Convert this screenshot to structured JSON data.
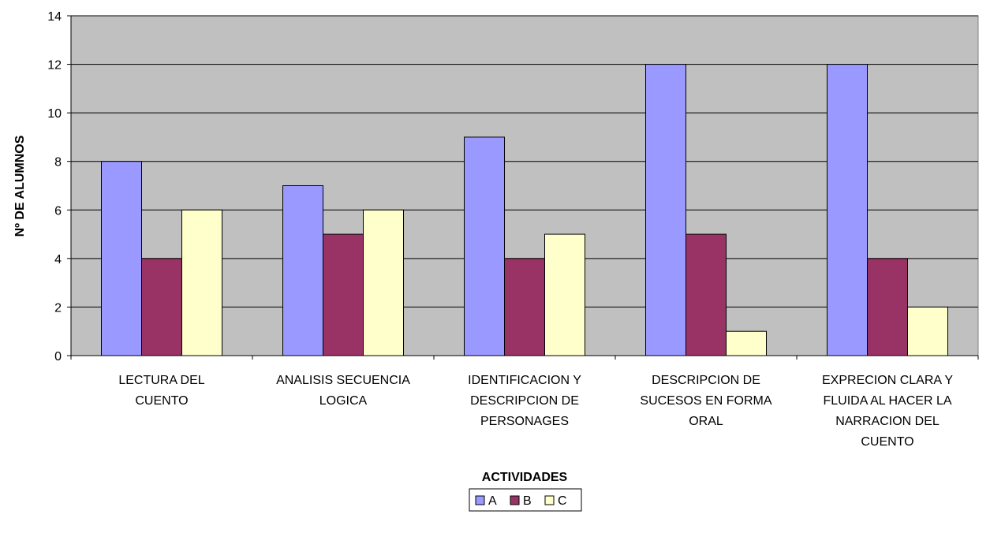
{
  "chart_data": {
    "type": "bar",
    "title": "",
    "xlabel": "ACTIVIDADES",
    "ylabel": "Nº DE ALUMNOS",
    "ylim": [
      0,
      14
    ],
    "yticks": [
      0,
      2,
      4,
      6,
      8,
      10,
      12,
      14
    ],
    "grid": true,
    "legend": "bottom-center",
    "categories": [
      [
        "LECTURA DEL",
        "CUENTO"
      ],
      [
        "ANALISIS SECUENCIA",
        "LOGICA"
      ],
      [
        "IDENTIFICACION Y",
        "DESCRIPCION DE",
        "PERSONAGES"
      ],
      [
        "DESCRIPCION DE",
        "SUCESOS EN FORMA",
        "ORAL"
      ],
      [
        "EXPRECION CLARA Y",
        "FLUIDA AL HACER LA",
        "NARRACION DEL",
        "CUENTO"
      ]
    ],
    "series": [
      {
        "name": "A",
        "color": "#9999ff",
        "values": [
          8,
          7,
          9,
          12,
          12
        ]
      },
      {
        "name": "B",
        "color": "#993366",
        "values": [
          4,
          5,
          4,
          5,
          4
        ]
      },
      {
        "name": "C",
        "color": "#ffffcc",
        "values": [
          6,
          6,
          5,
          1,
          2
        ]
      }
    ],
    "plot_background": "#c0c0c0"
  }
}
